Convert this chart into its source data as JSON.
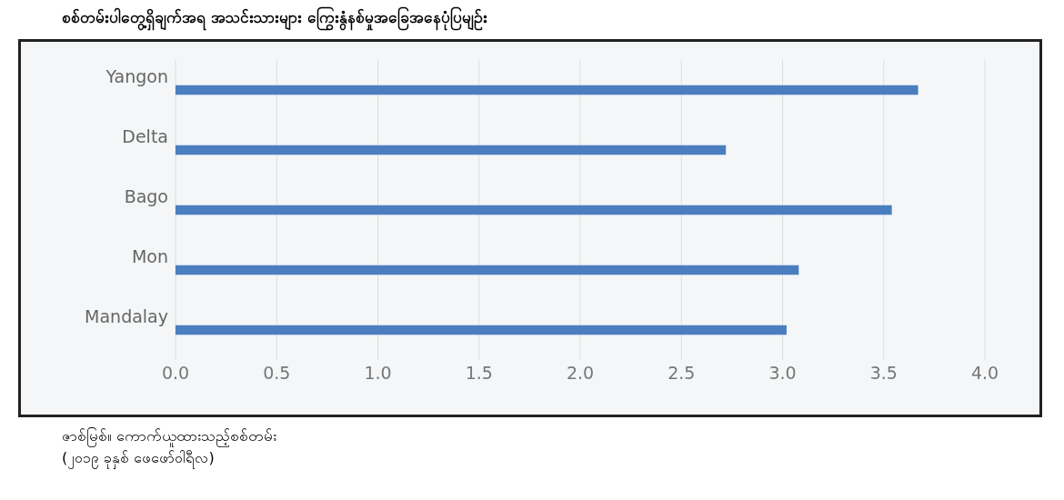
{
  "chart_data": {
    "type": "bar",
    "orientation": "horizontal",
    "title": "စစ်တမ်းပါတွေ့ရှိချက်အရ အသင်းသားများ ကြွေးနွံနစ်မှုအခြေအနေပုံပြမျဉ်း",
    "categories": [
      "Yangon",
      "Delta",
      "Bago",
      "Mon",
      "Mandalay"
    ],
    "values": [
      3.67,
      2.72,
      3.54,
      3.08,
      3.02
    ],
    "color": "#4a7ebf",
    "xlim": [
      0,
      4
    ],
    "xticks": [
      {
        "value": 0,
        "label": "0.0"
      },
      {
        "value": 0.5,
        "label": "0.5"
      },
      {
        "value": 1,
        "label": "1.0"
      },
      {
        "value": 1.5,
        "label": "1.5"
      },
      {
        "value": 2,
        "label": "2.0"
      },
      {
        "value": 2.5,
        "label": "2.5"
      },
      {
        "value": 3,
        "label": "3.0"
      },
      {
        "value": 3.5,
        "label": "3.5"
      },
      {
        "value": 4,
        "label": "4.0"
      }
    ],
    "grid": "x",
    "annotations": [
      "ဇာစ်မြစ်။ ကောက်ယူထားသည့်စစ်တမ်း",
      "(၂၀၁၉ ခုနှစ် ဖေဖော်ဝါရီလ)"
    ]
  }
}
